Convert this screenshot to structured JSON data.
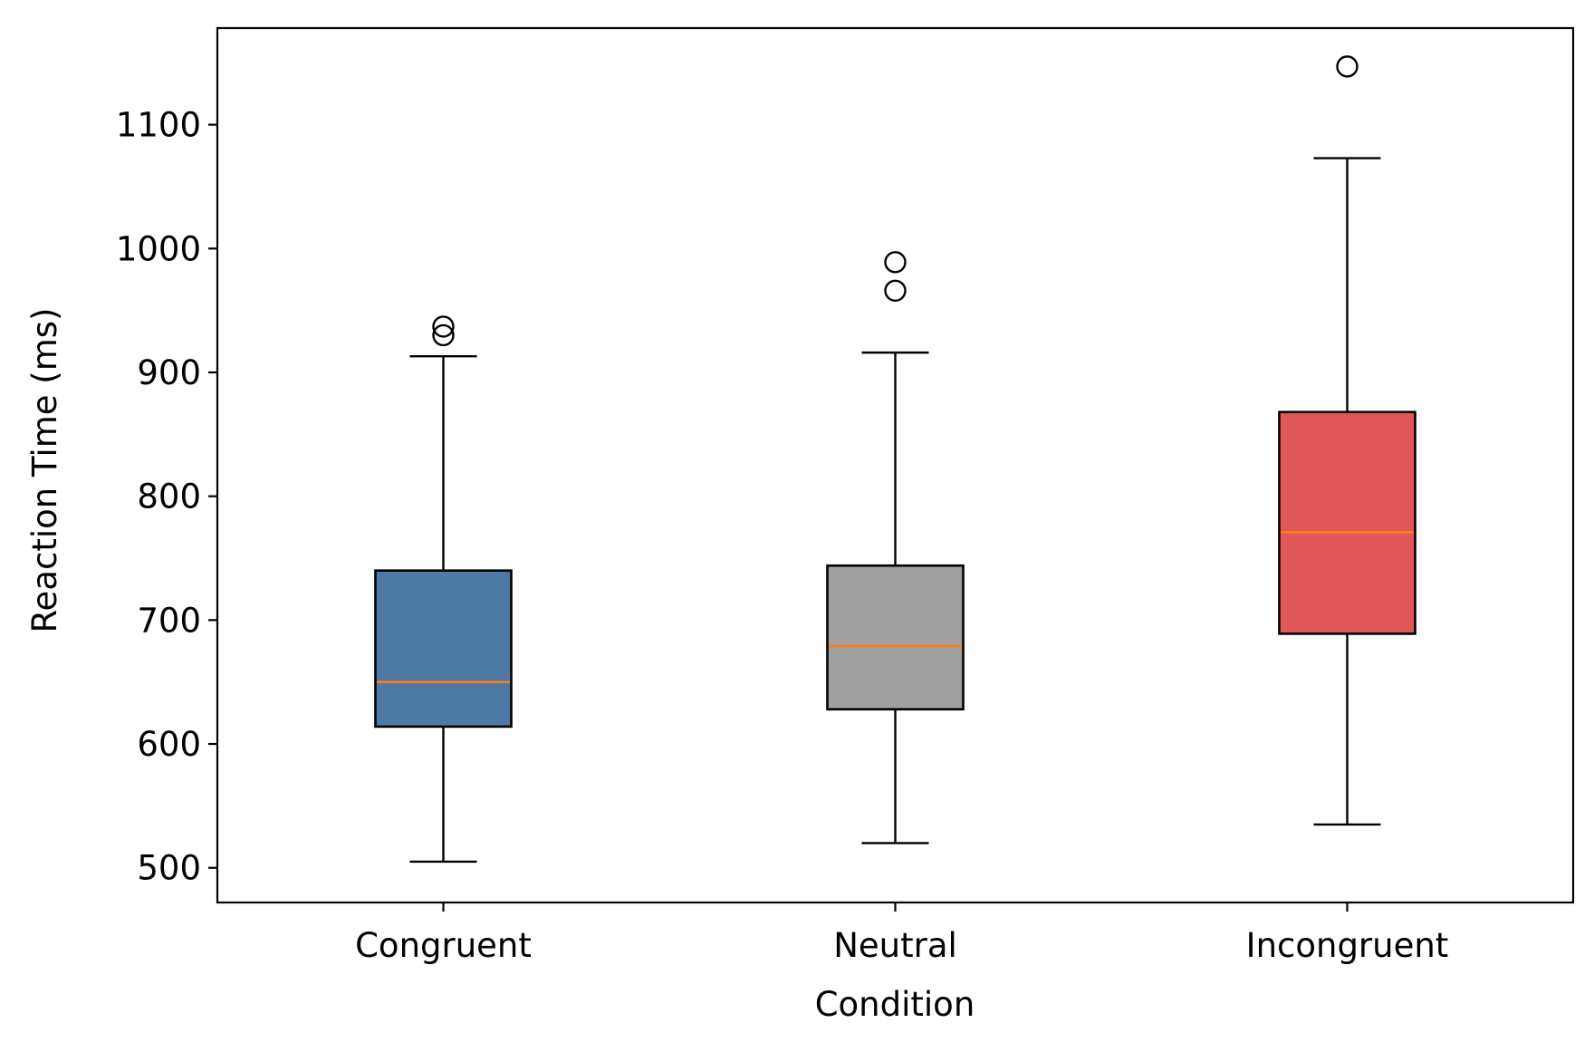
{
  "chart_data": {
    "type": "box",
    "xlabel": "Condition",
    "ylabel": "Reaction Time (ms)",
    "ylim": [
      472,
      1178
    ],
    "yticks": [
      500,
      600,
      700,
      800,
      900,
      1000,
      1100
    ],
    "grid": false,
    "categories": [
      "Congruent",
      "Neutral",
      "Incongruent"
    ],
    "boxes": [
      {
        "category": "Congruent",
        "color": "#4e79a7",
        "whisker_low": 505,
        "q1": 614,
        "median": 650,
        "q3": 740,
        "whisker_high": 913,
        "outliers": [
          930,
          937
        ]
      },
      {
        "category": "Neutral",
        "color": "#a0a0a0",
        "whisker_low": 520,
        "q1": 628,
        "median": 679,
        "q3": 744,
        "whisker_high": 916,
        "outliers": [
          966,
          989
        ]
      },
      {
        "category": "Incongruent",
        "color": "#e15759",
        "whisker_low": 535,
        "q1": 689,
        "median": 771,
        "q3": 868,
        "whisker_high": 1073,
        "outliers": [
          1147
        ]
      }
    ],
    "median_color": "#ff7f0e"
  }
}
